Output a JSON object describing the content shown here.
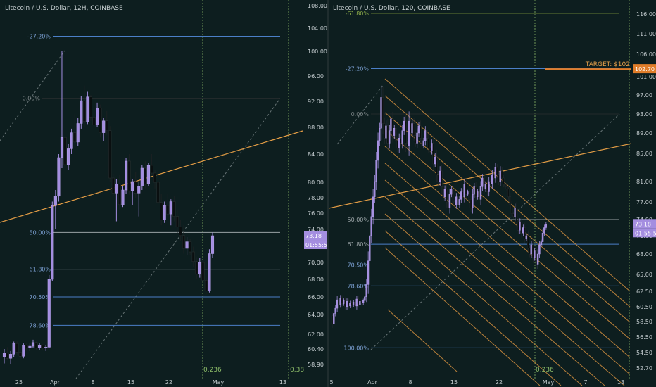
{
  "chart_data": [
    {
      "type": "candlestick",
      "title": "Litecoin / U.S. Dollar, 12H, COINBASE",
      "x_ticks": [
        "25",
        "Apr",
        "8",
        "15",
        "22",
        "May",
        "13"
      ],
      "y_ticks": [
        58.9,
        60.4,
        62,
        64,
        66,
        68,
        70,
        72,
        74,
        76,
        78,
        80,
        84,
        88,
        92,
        96,
        100,
        104,
        108
      ],
      "y_tick_labels": [
        "58.90",
        "60.40",
        "62.00",
        "64.00",
        "66.00",
        "68.00",
        "70.00",
        "72.00",
        "74.00",
        "76.00",
        "78.00",
        "80.00",
        "84.00",
        "88.00",
        "92.00",
        "96.00",
        "100.00",
        "104.00",
        "108.00"
      ],
      "ylim": [
        58,
        109
      ],
      "current_price": "73.18",
      "countdown": "01:55:59",
      "fib_levels": [
        {
          "label": "-27.20%",
          "price": 102.6
        },
        {
          "label": "0.00%",
          "price": 92.5
        },
        {
          "label": "50.00%",
          "price": 73.6
        },
        {
          "label": "61.80%",
          "price": 69.2
        },
        {
          "label": "70.50%",
          "price": 66.0
        },
        {
          "label": "78.60%",
          "price": 62.9
        }
      ],
      "time_fib_labels": [
        "0.236",
        "0.38"
      ],
      "candles_ohlc": [
        [
          59.6,
          60.4,
          59.0,
          60.0
        ],
        [
          60.0,
          60.6,
          59.3,
          59.5
        ],
        [
          59.5,
          60.2,
          58.9,
          59.9
        ],
        [
          59.9,
          61.2,
          59.6,
          61.0
        ],
        [
          61.0,
          61.3,
          59.8,
          60.1
        ],
        [
          60.1,
          60.4,
          59.4,
          59.7
        ],
        [
          59.7,
          61.0,
          59.5,
          60.8
        ],
        [
          60.8,
          61.1,
          60.2,
          60.5
        ],
        [
          60.5,
          61.0,
          60.2,
          60.7
        ],
        [
          60.7,
          61.4,
          60.5,
          61.1
        ],
        [
          61.1,
          61.2,
          60.3,
          60.5
        ],
        [
          60.5,
          61.0,
          60.3,
          60.8
        ],
        [
          60.8,
          60.9,
          60.3,
          60.5
        ],
        [
          60.5,
          60.8,
          60.2,
          60.6
        ],
        [
          60.6,
          68.5,
          60.5,
          68.0
        ],
        [
          68.0,
          77.5,
          67.8,
          77.0
        ],
        [
          77.0,
          79.0,
          74.0,
          78.2
        ],
        [
          78.2,
          84.0,
          77.5,
          83.5
        ],
        [
          83.5,
          100.0,
          82.0,
          86.5
        ],
        [
          86.5,
          89.0,
          81.5,
          82.5
        ],
        [
          82.5,
          85.5,
          81.8,
          84.8
        ],
        [
          84.8,
          87.8,
          84.0,
          87.2
        ],
        [
          87.2,
          90.0,
          85.0,
          85.8
        ],
        [
          85.8,
          89.5,
          85.2,
          88.6
        ],
        [
          88.6,
          92.8,
          87.8,
          92.1
        ],
        [
          92.1,
          94.5,
          88.0,
          88.9
        ],
        [
          88.9,
          93.5,
          88.5,
          92.7
        ],
        [
          92.7,
          93.0,
          89.0,
          89.6
        ],
        [
          89.6,
          91.0,
          88.0,
          88.4
        ],
        [
          88.4,
          91.8,
          88.0,
          91.0
        ],
        [
          91.0,
          91.5,
          86.5,
          87.2
        ],
        [
          87.2,
          89.5,
          86.0,
          89.0
        ],
        [
          89.0,
          90.5,
          86.8,
          87.5
        ],
        [
          87.5,
          88.2,
          80.0,
          80.6
        ],
        [
          80.6,
          81.2,
          78.2,
          78.6
        ],
        [
          78.6,
          80.5,
          75.0,
          79.8
        ],
        [
          79.8,
          81.0,
          76.5,
          77.1
        ],
        [
          77.1,
          79.5,
          76.8,
          79.0
        ],
        [
          79.0,
          83.5,
          78.5,
          83.0
        ],
        [
          83.0,
          84.0,
          78.4,
          78.9
        ],
        [
          78.9,
          80.5,
          77.0,
          80.1
        ],
        [
          80.1,
          81.5,
          78.0,
          78.6
        ],
        [
          78.6,
          80.0,
          75.6,
          79.5
        ],
        [
          79.5,
          82.5,
          79.0,
          82.0
        ],
        [
          82.0,
          83.0,
          79.2,
          79.8
        ],
        [
          79.8,
          82.8,
          79.5,
          82.4
        ],
        [
          82.4,
          84.0,
          81.0,
          81.3
        ],
        [
          81.3,
          81.8,
          79.2,
          80.0
        ],
        [
          80.0,
          81.0,
          77.0,
          77.4
        ],
        [
          77.4,
          78.5,
          74.5,
          75.2
        ],
        [
          75.2,
          77.5,
          74.8,
          77.0
        ],
        [
          77.0,
          78.5,
          75.5,
          75.9
        ],
        [
          75.9,
          77.8,
          74.5,
          77.5
        ],
        [
          77.5,
          78.2,
          75.0,
          75.6
        ],
        [
          75.6,
          76.5,
          73.5,
          74.3
        ],
        [
          74.3,
          75.2,
          72.5,
          73.2
        ],
        [
          73.2,
          74.5,
          71.0,
          71.6
        ],
        [
          71.6,
          73.0,
          70.8,
          72.4
        ],
        [
          72.4,
          72.8,
          70.8,
          71.2
        ],
        [
          71.2,
          71.8,
          69.5,
          70.1
        ],
        [
          70.1,
          70.6,
          68.0,
          68.6
        ],
        [
          68.6,
          70.5,
          68.2,
          70.0
        ],
        [
          70.0,
          70.3,
          67.5,
          67.9
        ],
        [
          67.9,
          68.2,
          66.3,
          66.7
        ],
        [
          66.7,
          71.5,
          66.5,
          71.0
        ],
        [
          71.0,
          73.6,
          70.5,
          73.18
        ]
      ]
    },
    {
      "type": "candlestick",
      "title": "Litecoin / U.S. Dollar, 120, COINBASE",
      "x_ticks": [
        "5",
        "Apr",
        "8",
        "15",
        "22",
        "May",
        "7",
        "13"
      ],
      "y_ticks": [
        52.7,
        54.5,
        56.5,
        58.5,
        60.5,
        62.5,
        65,
        68,
        71,
        74,
        77,
        81,
        85,
        89,
        93,
        97,
        101,
        106,
        111,
        116
      ],
      "y_tick_labels": [
        "52.70",
        "54.50",
        "56.50",
        "58.50",
        "60.50",
        "62.50",
        "65.00",
        "68.00",
        "71.00",
        "74.00",
        "77.00",
        "81.00",
        "85.00",
        "89.00",
        "93.00",
        "97.00",
        "101.00",
        "106.00",
        "111.00",
        "116.00"
      ],
      "ylim": [
        52,
        119
      ],
      "current_price": "73.18",
      "countdown": "01:55:59",
      "target_label": "TARGET: $102",
      "target_price": "102.70",
      "fib_levels": [
        {
          "label": "-61.80%",
          "price": 116.2
        },
        {
          "label": "-27.20%",
          "price": 102.8
        },
        {
          "label": "0.00%",
          "price": 93.0
        },
        {
          "label": "50.00%",
          "price": 74.0
        },
        {
          "label": "61.80%",
          "price": 69.6
        },
        {
          "label": "70.50%",
          "price": 66.4
        },
        {
          "label": "78.60%",
          "price": 63.3
        },
        {
          "label": "100.00%",
          "price": 55.1
        }
      ],
      "time_fib_labels": [
        "0.236"
      ],
      "price_path": [
        [
          0,
          59.3
        ],
        [
          2,
          58.2
        ],
        [
          4,
          59.6
        ],
        [
          6,
          60.3
        ],
        [
          8,
          61.4
        ],
        [
          10,
          60.8
        ],
        [
          12,
          61.6
        ],
        [
          14,
          60.9
        ],
        [
          16,
          61.3
        ],
        [
          18,
          60.5
        ],
        [
          20,
          61.2
        ],
        [
          22,
          60.6
        ],
        [
          24,
          61.0
        ],
        [
          26,
          60.7
        ],
        [
          28,
          61.1
        ],
        [
          30,
          60.6
        ],
        [
          32,
          61.5
        ],
        [
          34,
          60.8
        ],
        [
          36,
          61.2
        ],
        [
          38,
          61.0
        ],
        [
          40,
          61.3
        ],
        [
          42,
          61.8
        ],
        [
          44,
          63.5
        ],
        [
          46,
          67.0
        ],
        [
          48,
          71.0
        ],
        [
          50,
          74.5
        ],
        [
          52,
          78.0
        ],
        [
          54,
          81.0
        ],
        [
          56,
          84.0
        ],
        [
          58,
          87.5
        ],
        [
          60,
          90.0
        ],
        [
          62,
          96.5
        ],
        [
          64,
          91.0
        ],
        [
          66,
          88.0
        ],
        [
          68,
          90.5
        ],
        [
          70,
          87.0
        ],
        [
          72,
          89.5
        ],
        [
          74,
          92.0
        ],
        [
          76,
          88.5
        ],
        [
          78,
          90.0
        ],
        [
          80,
          87.5
        ],
        [
          82,
          86.0
        ],
        [
          84,
          88.0
        ],
        [
          86,
          87.0
        ],
        [
          88,
          89.5
        ],
        [
          90,
          91.5
        ],
        [
          92,
          87.0
        ],
        [
          94,
          86.5
        ],
        [
          96,
          91.5
        ],
        [
          98,
          89.0
        ],
        [
          100,
          91.0
        ],
        [
          102,
          88.5
        ],
        [
          104,
          87.0
        ],
        [
          106,
          89.0
        ],
        [
          108,
          90.5
        ],
        [
          110,
          88.0
        ],
        [
          112,
          86.5
        ],
        [
          114,
          87.5
        ],
        [
          116,
          89.5
        ],
        [
          118,
          88.0
        ],
        [
          120,
          86.0
        ],
        [
          122,
          85.5
        ],
        [
          124,
          87.0
        ],
        [
          126,
          83.5
        ],
        [
          128,
          84.5
        ],
        [
          130,
          82.0
        ],
        [
          132,
          81.0
        ],
        [
          134,
          82.5
        ],
        [
          136,
          80.0
        ],
        [
          138,
          78.0
        ],
        [
          140,
          79.5
        ],
        [
          142,
          77.0
        ],
        [
          144,
          76.0
        ],
        [
          146,
          78.5
        ],
        [
          148,
          79.5
        ],
        [
          150,
          77.0
        ],
        [
          152,
          76.5
        ],
        [
          154,
          78.0
        ],
        [
          156,
          76.5
        ],
        [
          158,
          77.5
        ],
        [
          160,
          79.0
        ],
        [
          162,
          78.0
        ],
        [
          164,
          80.5
        ],
        [
          166,
          78.5
        ],
        [
          168,
          79.0
        ],
        [
          170,
          77.5
        ],
        [
          172,
          76.0
        ],
        [
          174,
          78.5
        ],
        [
          176,
          80.0
        ],
        [
          178,
          78.0
        ],
        [
          180,
          79.0
        ],
        [
          182,
          77.5
        ],
        [
          184,
          80.0
        ],
        [
          186,
          81.5
        ],
        [
          188,
          79.5
        ],
        [
          190,
          80.5
        ],
        [
          192,
          79.0
        ],
        [
          194,
          81.0
        ],
        [
          196,
          80.5
        ],
        [
          198,
          82.0
        ],
        [
          200,
          81.5
        ],
        [
          202,
          83.0
        ],
        [
          204,
          82.0
        ],
        [
          206,
          81.0
        ],
        [
          208,
          82.5
        ],
        [
          210,
          81.5
        ],
        [
          212,
          80.5
        ],
        [
          214,
          80.0
        ],
        [
          216,
          79.5
        ],
        [
          218,
          78.0
        ],
        [
          220,
          76.5
        ],
        [
          222,
          75.0
        ],
        [
          224,
          74.5
        ],
        [
          226,
          76.0
        ],
        [
          228,
          73.5
        ],
        [
          230,
          72.0
        ],
        [
          232,
          73.5
        ],
        [
          234,
          71.5
        ],
        [
          236,
          72.5
        ],
        [
          238,
          70.5
        ],
        [
          240,
          71.0
        ],
        [
          242,
          69.0
        ],
        [
          244,
          68.0
        ],
        [
          246,
          69.5
        ],
        [
          248,
          67.5
        ],
        [
          250,
          68.5
        ],
        [
          252,
          66.5
        ],
        [
          254,
          68.0
        ],
        [
          256,
          69.5
        ],
        [
          258,
          70.0
        ],
        [
          260,
          71.5
        ],
        [
          262,
          72.5
        ],
        [
          264,
          73.18
        ]
      ]
    }
  ]
}
